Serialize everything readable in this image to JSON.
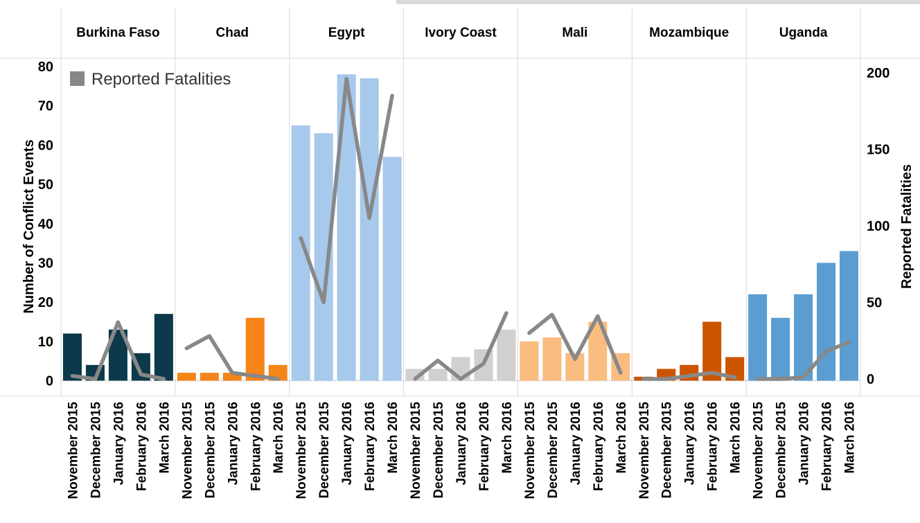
{
  "chart_data": {
    "type": "bar",
    "facets": [
      "Burkina Faso",
      "Chad",
      "Egypt",
      "Ivory Coast",
      "Mali",
      "Mozambique",
      "Uganda"
    ],
    "categories": [
      "November 2015",
      "December 2015",
      "January 2016",
      "February 2016",
      "March 2016"
    ],
    "ylabel": "Number of Conflict Events",
    "y2label": "Reported Fatalities",
    "ylim": [
      0,
      80
    ],
    "y2lim": [
      0,
      200
    ],
    "yticks": [
      0,
      10,
      20,
      30,
      40,
      50,
      60,
      70,
      80
    ],
    "y2ticks": [
      0,
      50,
      100,
      150,
      200
    ],
    "grid": false,
    "legend": {
      "position": "top-left",
      "entries": [
        {
          "label": "Reported Fatalities",
          "color": "#888888"
        }
      ]
    },
    "colors": {
      "Burkina Faso": "#0d3a4a",
      "Chad": "#f58518",
      "Egypt": "#a6c9ec",
      "Ivory Coast": "#d0d0d0",
      "Mali": "#fbbc7f",
      "Mozambique": "#cc5500",
      "Uganda": "#5b9dd0",
      "fatalities_line": "#888888"
    },
    "series": [
      {
        "name": "Number of Conflict Events",
        "type": "bar",
        "axis": "left",
        "values": {
          "Burkina Faso": [
            12,
            4,
            13,
            7,
            17
          ],
          "Chad": [
            2,
            2,
            2,
            16,
            4
          ],
          "Egypt": [
            65,
            63,
            78,
            77,
            57
          ],
          "Ivory Coast": [
            3,
            3,
            6,
            8,
            13
          ],
          "Mali": [
            10,
            11,
            7,
            15,
            7
          ],
          "Mozambique": [
            1,
            3,
            4,
            15,
            6
          ],
          "Uganda": [
            22,
            16,
            22,
            30,
            33
          ]
        }
      },
      {
        "name": "Reported Fatalities",
        "type": "line",
        "axis": "right",
        "values": {
          "Burkina Faso": [
            2,
            0,
            37,
            3,
            0
          ],
          "Chad": [
            20,
            28,
            4,
            2,
            0
          ],
          "Egypt": [
            92,
            50,
            196,
            105,
            185
          ],
          "Ivory Coast": [
            0,
            12,
            0,
            10,
            43
          ],
          "Mali": [
            30,
            42,
            13,
            41,
            4
          ],
          "Mozambique": [
            0,
            0,
            2,
            4,
            1
          ],
          "Uganda": [
            0,
            0,
            1,
            18,
            24
          ]
        }
      }
    ]
  }
}
